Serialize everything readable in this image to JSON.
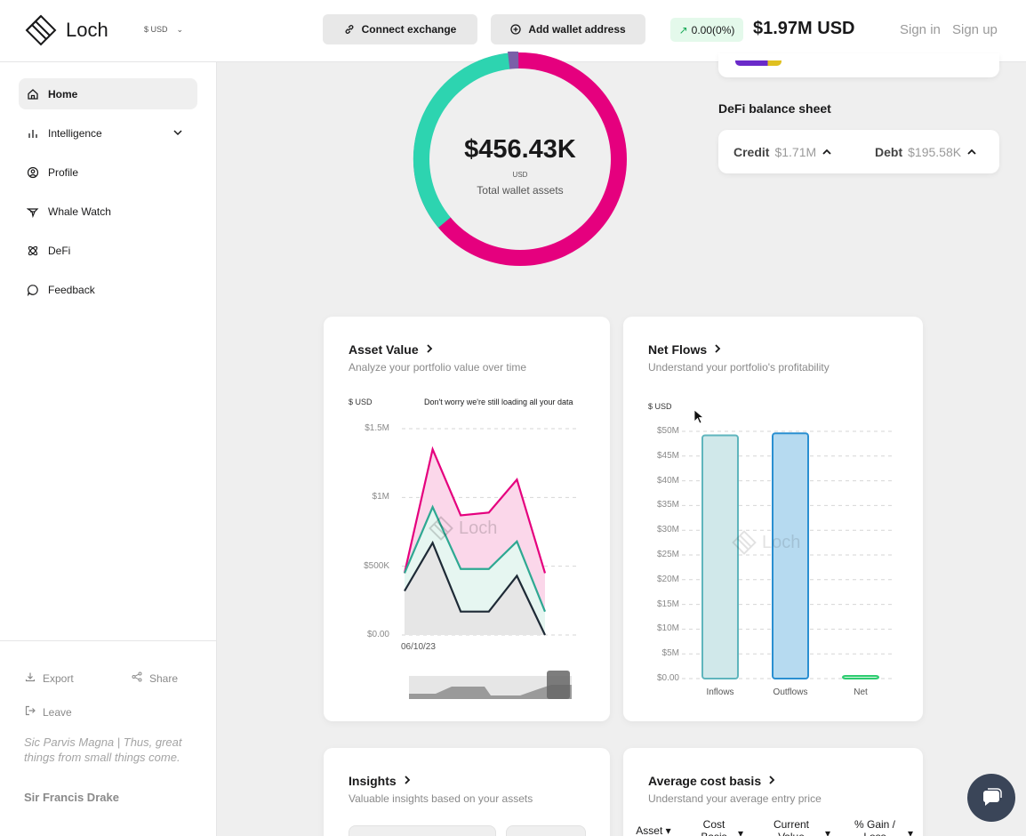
{
  "header": {
    "logo_text": "Loch",
    "currency": "$ USD",
    "connect_label": "Connect exchange",
    "add_wallet_label": "Add wallet address",
    "gain_text": "0.00(0%)",
    "total_value": "$1.97M USD",
    "sign_in": "Sign in",
    "sign_up": "Sign up"
  },
  "sidebar": {
    "items": [
      {
        "label": "Home",
        "icon": "home-icon",
        "active": true
      },
      {
        "label": "Intelligence",
        "icon": "bar-chart-icon"
      },
      {
        "label": "Profile",
        "icon": "user-circle-icon"
      },
      {
        "label": "Whale Watch",
        "icon": "whale-icon"
      },
      {
        "label": "DeFi",
        "icon": "atom-icon"
      },
      {
        "label": "Feedback",
        "icon": "chat-bubble-icon"
      }
    ],
    "export_label": "Export",
    "share_label": "Share",
    "leave_label": "Leave",
    "quote": "Sic Parvis Magna | Thus, great things from small things come.",
    "author": "Sir Francis Drake"
  },
  "donut": {
    "value": "$456.43K",
    "currency": "USD",
    "label": "Total wallet assets",
    "colors": {
      "pink": "#e5007e",
      "teal": "#2dd4b0",
      "purple": "#7a5fa8"
    }
  },
  "defi": {
    "title": "DeFi balance sheet",
    "credit_label": "Credit",
    "credit_value": "$1.71M",
    "debt_label": "Debt",
    "debt_value": "$195.58K"
  },
  "asset_value": {
    "title": "Asset Value",
    "subtitle": "Analyze your portfolio value over time",
    "unit": "$ USD",
    "loading_note": "Don't worry we're still loading all your data",
    "watermark": "Loch"
  },
  "net_flows": {
    "title": "Net Flows",
    "subtitle": "Understand your portfolio's profitability",
    "unit": "$ USD",
    "watermark": "Loch"
  },
  "insights": {
    "title": "Insights",
    "subtitle": "Valuable insights based on your assets"
  },
  "avg_cost": {
    "title": "Average cost basis",
    "subtitle": "Understand your average entry price",
    "columns": [
      "Asset",
      "Cost Basis",
      "Current Value",
      "% Gain / Loss"
    ]
  },
  "chart_data": [
    {
      "type": "area",
      "title": "Asset Value",
      "ylabel": "$ USD",
      "y_ticks": [
        "$1.5M",
        "$1M",
        "$500K",
        "$0.00"
      ],
      "x_ticks": [
        "06/10/23"
      ],
      "ylim": [
        0,
        1500000
      ],
      "series": [
        {
          "color": "#e5007e",
          "values": [
            450000,
            1350000,
            870000,
            890000,
            1130000,
            450000
          ]
        },
        {
          "color": "#2ea892",
          "values": [
            450000,
            930000,
            480000,
            480000,
            680000,
            170000
          ]
        },
        {
          "color": "#1e2a36",
          "values": [
            320000,
            670000,
            170000,
            170000,
            430000,
            0
          ]
        }
      ]
    },
    {
      "type": "bar",
      "title": "Net Flows",
      "ylabel": "$ USD",
      "categories": [
        "Inflows",
        "Outflows",
        "Net"
      ],
      "values": [
        49200000,
        49600000,
        400000
      ],
      "ylim": [
        0,
        50000000
      ],
      "y_ticks": [
        "$50M",
        "$45M",
        "$40M",
        "$35M",
        "$30M",
        "$25M",
        "$20M",
        "$15M",
        "$10M",
        "$5M",
        "$0.00"
      ],
      "colors": [
        "#5fb5bd",
        "#2a8fd1",
        "#2ecc71"
      ]
    }
  ]
}
